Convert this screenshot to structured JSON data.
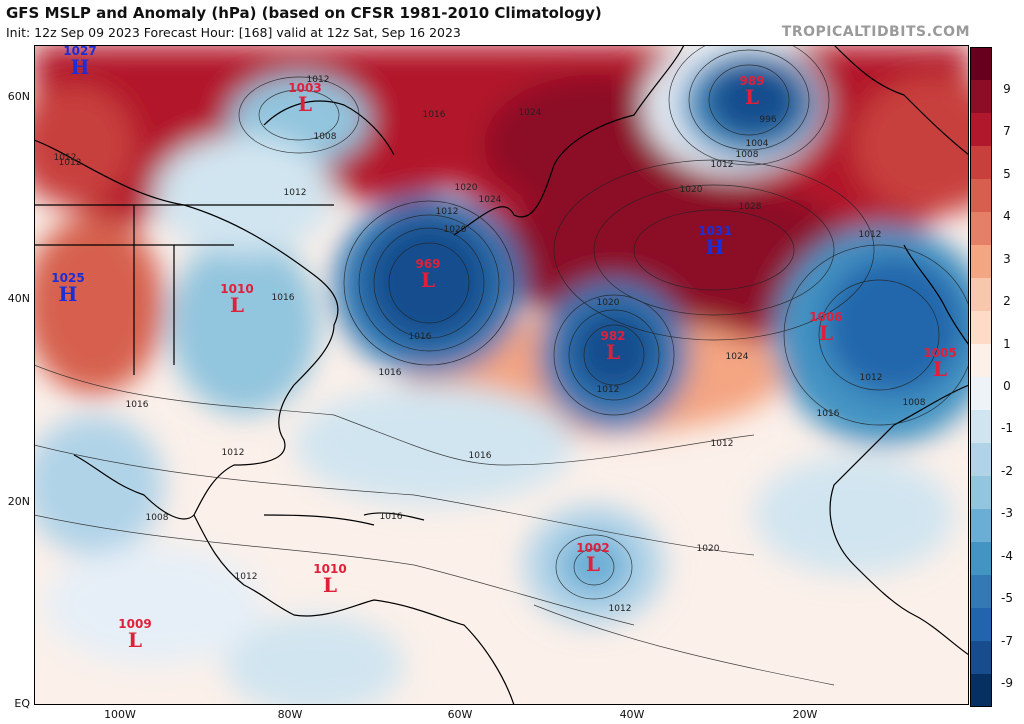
{
  "header": {
    "title": "GFS MSLP and Anomaly (hPa) (based on CFSR 1981-2010 Climatology)",
    "subtitle": "Init: 12z Sep 09 2023   Forecast Hour: [168]   valid at 12z Sat, Sep 16 2023",
    "credit": "TROPICALTIDBITS.COM"
  },
  "lat_labels": [
    "60N",
    "40N",
    "20N",
    "EQ"
  ],
  "lon_labels": [
    "100W",
    "80W",
    "60W",
    "40W",
    "20W"
  ],
  "colorbar": {
    "labels": [
      "9",
      "7",
      "5",
      "4",
      "3",
      "2",
      "1",
      "0",
      "-1",
      "-2",
      "-3",
      "-4",
      "-5",
      "-7",
      "-9"
    ],
    "colors": [
      "#67001f",
      "#8c0d25",
      "#b2182b",
      "#c83f3c",
      "#d6604d",
      "#e48066",
      "#f4a582",
      "#f8c7ad",
      "#fddbc7",
      "#fbf0ea",
      "#eef3f8",
      "#d1e5f0",
      "#b0d3e8",
      "#92c5de",
      "#6aaed6",
      "#4393c3",
      "#3279b5",
      "#2166ac",
      "#174d8e",
      "#053061"
    ]
  },
  "pressure_systems": [
    {
      "type": "H",
      "value": "1027"
    },
    {
      "type": "L",
      "value": "1003"
    },
    {
      "type": "L",
      "value": "989"
    },
    {
      "type": "H",
      "value": "1031"
    },
    {
      "type": "H",
      "value": "1025"
    },
    {
      "type": "L",
      "value": "1010"
    },
    {
      "type": "L",
      "value": "969"
    },
    {
      "type": "L",
      "value": "982"
    },
    {
      "type": "L",
      "value": "1006"
    },
    {
      "type": "L",
      "value": "1005"
    },
    {
      "type": "L",
      "value": "1002"
    },
    {
      "type": "L",
      "value": "1010"
    },
    {
      "type": "L",
      "value": "1009"
    }
  ],
  "isobar_labels": [
    "1012",
    "1008",
    "1016",
    "1020",
    "1020",
    "1024",
    "1028",
    "1024",
    "1024",
    "1020",
    "1004",
    "996",
    "1008",
    "1012",
    "1012",
    "1016",
    "1020",
    "1012",
    "1012",
    "1016",
    "1016",
    "1016",
    "1016",
    "1020",
    "1012",
    "1016",
    "1012",
    "1012",
    "1012",
    "1012",
    "1012",
    "1008",
    "1016",
    "1012",
    "1008",
    "1012"
  ]
}
